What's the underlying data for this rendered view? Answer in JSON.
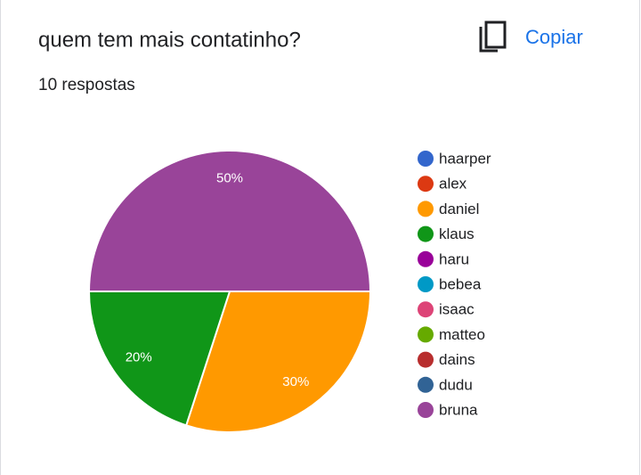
{
  "chart_data": {
    "type": "pie",
    "title": "quem tem mais contatinho?",
    "subtitle": "10 respostas",
    "categories": [
      "haarper",
      "alex",
      "daniel",
      "klaus",
      "haru",
      "bebea",
      "isaac",
      "matteo",
      "dains",
      "dudu",
      "bruna"
    ],
    "values": [
      0,
      0,
      30,
      20,
      0,
      0,
      0,
      0,
      0,
      0,
      50
    ],
    "value_labels": [
      null,
      null,
      "30%",
      "20%",
      null,
      null,
      null,
      null,
      null,
      null,
      "50%"
    ],
    "colors": [
      "#3366cc",
      "#dc3912",
      "#ff9900",
      "#109618",
      "#990099",
      "#0099c6",
      "#dd4477",
      "#66aa00",
      "#b82e2e",
      "#316395",
      "#994499"
    ],
    "legend": "right"
  },
  "copy_button": "Copiar"
}
